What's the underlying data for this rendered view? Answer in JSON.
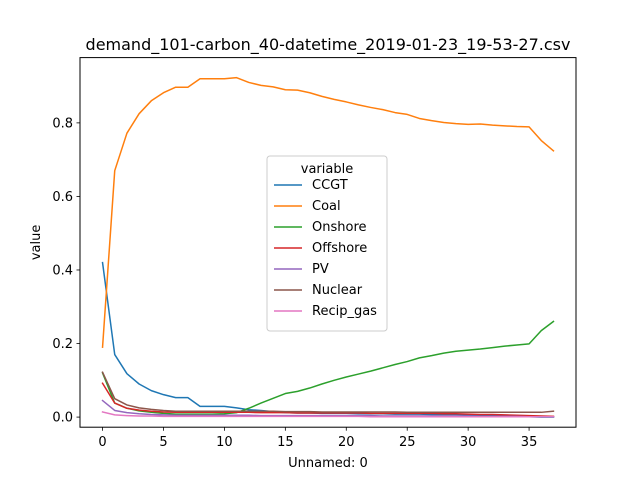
{
  "chart_data": {
    "type": "line",
    "title": "demand_101-carbon_40-datetime_2019-01-23_19-53-27.csv",
    "xlabel": "Unnamed: 0",
    "ylabel": "value",
    "xlim": [
      -1.85,
      38.85
    ],
    "ylim": [
      -0.0275,
      0.9775
    ],
    "xticks": [
      0,
      5,
      10,
      15,
      20,
      25,
      30,
      35
    ],
    "yticks": [
      0.0,
      0.2,
      0.4,
      0.6,
      0.8
    ],
    "ytick_labels": [
      "0.0",
      "0.2",
      "0.4",
      "0.6",
      "0.8"
    ],
    "grid": false,
    "legend": {
      "title": "variable",
      "placement": "center"
    },
    "x": [
      0,
      1,
      2,
      3,
      4,
      5,
      6,
      7,
      8,
      9,
      10,
      11,
      12,
      13,
      14,
      15,
      16,
      17,
      18,
      19,
      20,
      21,
      22,
      23,
      24,
      25,
      26,
      27,
      28,
      29,
      30,
      31,
      32,
      33,
      34,
      35,
      36,
      37
    ],
    "series": [
      {
        "name": "CCGT",
        "color": "#1f77b4",
        "values": [
          0.42,
          0.17,
          0.118,
          0.09,
          0.072,
          0.061,
          0.053,
          0.053,
          0.029,
          0.029,
          0.029,
          0.025,
          0.02,
          0.018,
          0.015,
          0.012,
          0.011,
          0.011,
          0.01,
          0.01,
          0.01,
          0.009,
          0.009,
          0.009,
          0.008,
          0.008,
          0.008,
          0.007,
          0.007,
          0.007,
          0.006,
          0.005,
          0.004,
          0.003,
          0.002,
          0.001,
          0.0,
          0.0
        ]
      },
      {
        "name": "Coal",
        "color": "#ff7f0e",
        "values": [
          0.19,
          0.67,
          0.772,
          0.825,
          0.86,
          0.882,
          0.897,
          0.897,
          0.92,
          0.92,
          0.92,
          0.923,
          0.91,
          0.902,
          0.898,
          0.89,
          0.889,
          0.882,
          0.872,
          0.864,
          0.857,
          0.849,
          0.842,
          0.836,
          0.828,
          0.823,
          0.812,
          0.806,
          0.801,
          0.798,
          0.796,
          0.797,
          0.794,
          0.792,
          0.79,
          0.789,
          0.752,
          0.724
        ]
      },
      {
        "name": "Onshore",
        "color": "#2ca02c",
        "values": [
          0.12,
          0.038,
          0.024,
          0.017,
          0.013,
          0.01,
          0.008,
          0.008,
          0.008,
          0.008,
          0.009,
          0.012,
          0.024,
          0.038,
          0.051,
          0.064,
          0.07,
          0.079,
          0.09,
          0.1,
          0.109,
          0.117,
          0.125,
          0.134,
          0.143,
          0.151,
          0.161,
          0.167,
          0.174,
          0.179,
          0.182,
          0.185,
          0.189,
          0.193,
          0.196,
          0.199,
          0.235,
          0.26
        ]
      },
      {
        "name": "Offshore",
        "color": "#d62728",
        "values": [
          0.092,
          0.038,
          0.024,
          0.019,
          0.016,
          0.014,
          0.013,
          0.013,
          0.013,
          0.013,
          0.013,
          0.013,
          0.013,
          0.012,
          0.012,
          0.012,
          0.011,
          0.011,
          0.011,
          0.011,
          0.011,
          0.011,
          0.01,
          0.01,
          0.01,
          0.01,
          0.01,
          0.01,
          0.009,
          0.009,
          0.008,
          0.007,
          0.007,
          0.006,
          0.005,
          0.004,
          0.003,
          0.002
        ]
      },
      {
        "name": "PV",
        "color": "#9467bd",
        "values": [
          0.045,
          0.018,
          0.012,
          0.009,
          0.007,
          0.006,
          0.005,
          0.005,
          0.005,
          0.005,
          0.005,
          0.005,
          0.005,
          0.004,
          0.004,
          0.004,
          0.004,
          0.004,
          0.004,
          0.004,
          0.004,
          0.004,
          0.004,
          0.003,
          0.003,
          0.003,
          0.003,
          0.003,
          0.003,
          0.003,
          0.003,
          0.002,
          0.002,
          0.002,
          0.002,
          0.001,
          0.001,
          0.001
        ]
      },
      {
        "name": "Nuclear",
        "color": "#8c564b",
        "values": [
          0.122,
          0.05,
          0.033,
          0.025,
          0.021,
          0.018,
          0.016,
          0.016,
          0.016,
          0.016,
          0.016,
          0.016,
          0.016,
          0.016,
          0.016,
          0.015,
          0.015,
          0.015,
          0.014,
          0.014,
          0.014,
          0.014,
          0.014,
          0.014,
          0.014,
          0.013,
          0.013,
          0.013,
          0.013,
          0.013,
          0.013,
          0.013,
          0.013,
          0.013,
          0.013,
          0.013,
          0.013,
          0.016
        ]
      },
      {
        "name": "Recip_gas",
        "color": "#e377c2",
        "values": [
          0.014,
          0.006,
          0.004,
          0.003,
          0.003,
          0.002,
          0.002,
          0.002,
          0.002,
          0.002,
          0.002,
          0.002,
          0.002,
          0.002,
          0.002,
          0.002,
          0.002,
          0.002,
          0.002,
          0.002,
          0.002,
          0.002,
          0.001,
          0.001,
          0.001,
          0.001,
          0.001,
          0.001,
          0.001,
          0.001,
          0.001,
          0.001,
          0.001,
          0.001,
          0.001,
          0.001,
          0.001,
          0.001
        ]
      }
    ]
  }
}
